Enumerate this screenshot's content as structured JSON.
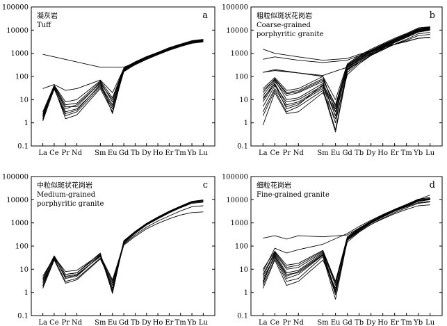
{
  "chart_data": [
    {
      "type": "line",
      "panel": "a",
      "title_lines": [
        "凝灰岩",
        "Tuff"
      ],
      "x_categories": [
        "La",
        "Ce",
        "Pr",
        "Nd",
        "Sm",
        "Eu",
        "Gd",
        "Tb",
        "Dy",
        "Ho",
        "Er",
        "Tm",
        "Yb",
        "Lu"
      ],
      "y_scale": "log",
      "ylim": [
        0.1,
        100000
      ],
      "y_ticks": [
        "0.1",
        "1",
        "10",
        "100",
        "1000",
        "10000",
        "100000"
      ],
      "grid": false,
      "series": [
        {
          "values": [
            900,
            700,
            null,
            null,
            250,
            null,
            250,
            400,
            600,
            900,
            1400,
            2000,
            2800,
            3200
          ]
        },
        {
          "values": [
            30,
            45,
            25,
            30,
            70,
            20,
            220,
            420,
            700,
            1100,
            1700,
            2400,
            3400,
            3900
          ]
        },
        {
          "values": [
            1.5,
            40,
            6,
            7,
            60,
            8,
            200,
            380,
            650,
            1000,
            1600,
            2300,
            3200,
            3600
          ]
        },
        {
          "values": [
            2,
            35,
            3,
            4,
            40,
            5,
            180,
            350,
            600,
            950,
            1500,
            2200,
            3000,
            3500
          ]
        },
        {
          "values": [
            1.2,
            30,
            2,
            3,
            35,
            4,
            160,
            330,
            560,
            900,
            1400,
            2000,
            2800,
            3200
          ]
        },
        {
          "values": [
            2.5,
            38,
            4,
            6,
            50,
            10,
            210,
            400,
            680,
            1050,
            1650,
            2350,
            3300,
            3800
          ]
        },
        {
          "values": [
            1.8,
            33,
            1.5,
            2.2,
            30,
            3,
            170,
            320,
            540,
            870,
            1350,
            1950,
            2700,
            3100
          ]
        },
        {
          "values": [
            3,
            42,
            8,
            10,
            65,
            12,
            230,
            430,
            720,
            1100,
            1750,
            2500,
            3500,
            4000
          ]
        },
        {
          "values": [
            1.4,
            28,
            2.5,
            3.5,
            45,
            6,
            190,
            360,
            610,
            960,
            1500,
            2150,
            3000,
            3400
          ]
        },
        {
          "values": [
            2.2,
            36,
            5,
            5,
            55,
            2.5,
            200,
            390,
            660,
            1020,
            1600,
            2300,
            3200,
            3700
          ]
        }
      ]
    },
    {
      "type": "line",
      "panel": "b",
      "title_lines": [
        "粗粒似斑状花岗岩",
        "Coarse-grained",
        "porphyritic granite"
      ],
      "x_categories": [
        "La",
        "Ce",
        "Pr",
        "Nd",
        "Sm",
        "Eu",
        "Gd",
        "Tb",
        "Dy",
        "Ho",
        "Er",
        "Tm",
        "Yb",
        "Lu"
      ],
      "y_scale": "log",
      "ylim": [
        0.1,
        100000
      ],
      "y_ticks": [
        "0.1",
        "1",
        "10",
        "100",
        "1000",
        "10000",
        "100000"
      ],
      "grid": false,
      "series": [
        {
          "values": [
            1500,
            1000,
            null,
            700,
            500,
            null,
            600,
            900,
            1300,
            1800,
            2500,
            3300,
            4500,
            5000
          ]
        },
        {
          "values": [
            550,
            700,
            null,
            500,
            400,
            null,
            500,
            800,
            1200,
            1700,
            2400,
            3200,
            4400,
            4800
          ]
        },
        {
          "values": [
            150,
            200,
            null,
            null,
            100,
            3,
            200,
            400,
            800,
            1400,
            2500,
            4000,
            7000,
            8000
          ]
        },
        {
          "values": [
            20,
            80,
            20,
            25,
            80,
            5,
            300,
            700,
            1300,
            2300,
            4000,
            6500,
            11000,
            13000
          ]
        },
        {
          "values": [
            10,
            60,
            15,
            20,
            60,
            2,
            250,
            600,
            1200,
            2200,
            3800,
            6200,
            10500,
            12000
          ]
        },
        {
          "values": [
            5,
            40,
            8,
            10,
            40,
            1,
            200,
            500,
            1000,
            1900,
            3400,
            5600,
            9500,
            11000
          ]
        },
        {
          "values": [
            3,
            30,
            5,
            7,
            30,
            0.5,
            180,
            450,
            950,
            1800,
            3200,
            5300,
            9000,
            10500
          ]
        },
        {
          "values": [
            2,
            25,
            3,
            5,
            25,
            0.4,
            150,
            400,
            850,
            1700,
            3000,
            5000,
            8500,
            10000
          ]
        },
        {
          "values": [
            0.8,
            20,
            2.5,
            3,
            20,
            1.5,
            120,
            350,
            800,
            1600,
            2900,
            4800,
            8200,
            9800
          ]
        },
        {
          "values": [
            30,
            90,
            25,
            30,
            100,
            10,
            350,
            800,
            1500,
            2600,
            4500,
            7200,
            12500,
            14000
          ]
        },
        {
          "values": [
            15,
            70,
            10,
            12,
            50,
            4,
            280,
            650,
            1250,
            2250,
            3900,
            6300,
            10800,
            12500
          ]
        },
        {
          "values": [
            8,
            50,
            6,
            8,
            35,
            3,
            220,
            550,
            1100,
            2000,
            3500,
            5800,
            9800,
            11500
          ]
        },
        {
          "values": [
            150,
            180,
            null,
            null,
            110,
            null,
            250,
            500,
            900,
            1500,
            2400,
            3600,
            5800,
            6500
          ]
        },
        {
          "values": [
            12,
            45,
            4,
            6,
            45,
            2,
            260,
            580,
            1150,
            2100,
            3700,
            6000,
            10200,
            12000
          ]
        },
        {
          "values": [
            25,
            75,
            18,
            22,
            70,
            6,
            320,
            720,
            1350,
            2400,
            4100,
            6700,
            11500,
            13500
          ]
        }
      ]
    },
    {
      "type": "line",
      "panel": "c",
      "title_lines": [
        "中粒似斑状花岗岩",
        "Medium-grained",
        "porphyritic granite"
      ],
      "x_categories": [
        "La",
        "Ce",
        "Pr",
        "Nd",
        "Sm",
        "Eu",
        "Gd",
        "Tb",
        "Dy",
        "Ho",
        "Er",
        "Tm",
        "Yb",
        "Lu"
      ],
      "y_scale": "log",
      "ylim": [
        0.1,
        100000
      ],
      "y_ticks": [
        "0.1",
        "1",
        "10",
        "100",
        "1000",
        "10000",
        "100000"
      ],
      "grid": false,
      "series": [
        {
          "values": [
            2,
            35,
            4,
            5,
            40,
            1,
            150,
            400,
            900,
            1700,
            3000,
            5000,
            8000,
            9000
          ]
        },
        {
          "values": [
            3,
            30,
            5,
            6,
            35,
            3,
            140,
            380,
            850,
            1600,
            2800,
            4700,
            7500,
            8500
          ]
        },
        {
          "values": [
            4,
            38,
            6,
            7,
            50,
            0.9,
            160,
            420,
            920,
            1750,
            3100,
            5200,
            8300,
            9500
          ]
        },
        {
          "values": [
            1.8,
            28,
            3,
            4,
            30,
            2.5,
            130,
            350,
            800,
            1500,
            2700,
            4500,
            7000,
            7800
          ]
        },
        {
          "values": [
            5,
            33,
            8,
            9,
            45,
            1.5,
            170,
            430,
            950,
            1800,
            3200,
            5300,
            8500,
            9800
          ]
        },
        {
          "values": [
            2.5,
            32,
            4.5,
            5.5,
            38,
            3.5,
            120,
            300,
            650,
            1200,
            2000,
            3300,
            5000,
            5500
          ]
        },
        {
          "values": [
            3.5,
            36,
            6,
            7,
            42,
            1.2,
            145,
            390,
            870,
            1650,
            2900,
            4800,
            7700,
            8800
          ]
        },
        {
          "values": [
            1.5,
            25,
            2.5,
            3.5,
            28,
            2,
            110,
            260,
            550,
            950,
            1500,
            2200,
            2800,
            3000
          ]
        }
      ]
    },
    {
      "type": "line",
      "panel": "d",
      "title_lines": [
        "细粒花岗岩",
        "Fine-grained granite"
      ],
      "x_categories": [
        "La",
        "Ce",
        "Pr",
        "Nd",
        "Sm",
        "Eu",
        "Gd",
        "Tb",
        "Dy",
        "Ho",
        "Er",
        "Tm",
        "Yb",
        "Lu"
      ],
      "y_scale": "log",
      "ylim": [
        0.1,
        100000
      ],
      "y_ticks": [
        "0.1",
        "1",
        "10",
        "100",
        "1000",
        "10000",
        "100000"
      ],
      "grid": false,
      "series": [
        {
          "values": [
            220,
            280,
            200,
            280,
            250,
            null,
            300,
            600,
            1100,
            1900,
            3200,
            5000,
            7500,
            8500
          ]
        },
        {
          "values": [
            8,
            80,
            50,
            70,
            120,
            null,
            350,
            700,
            1300,
            2300,
            3800,
            6000,
            9500,
            11000
          ]
        },
        {
          "values": [
            3,
            40,
            5,
            8,
            45,
            1,
            200,
            500,
            1000,
            1900,
            3400,
            5500,
            9000,
            10500
          ]
        },
        {
          "values": [
            2,
            30,
            3,
            4,
            35,
            0.5,
            180,
            450,
            950,
            1800,
            3200,
            5200,
            8500,
            10000
          ]
        },
        {
          "values": [
            5,
            50,
            10,
            12,
            55,
            2,
            220,
            550,
            1100,
            2000,
            3600,
            5800,
            9800,
            11500
          ]
        },
        {
          "values": [
            1.5,
            25,
            2,
            3,
            25,
            1.5,
            150,
            400,
            850,
            1600,
            2800,
            4500,
            7000,
            8000
          ]
        },
        {
          "values": [
            10,
            60,
            15,
            18,
            65,
            3,
            250,
            600,
            1200,
            2200,
            3900,
            6300,
            10500,
            12500
          ]
        },
        {
          "values": [
            4,
            35,
            4,
            6,
            40,
            0.8,
            190,
            480,
            980,
            1850,
            3300,
            5400,
            8800,
            10200
          ]
        },
        {
          "values": [
            2.5,
            45,
            7,
            9,
            50,
            1.2,
            210,
            520,
            1050,
            1950,
            3500,
            5700,
            9500,
            11200
          ]
        },
        {
          "values": [
            6,
            55,
            12,
            15,
            60,
            2.5,
            240,
            580,
            1150,
            2100,
            3700,
            6000,
            10000,
            16000
          ]
        },
        {
          "values": [
            3,
            38,
            6,
            7,
            42,
            1,
            180,
            420,
            850,
            1500,
            2500,
            3800,
            5500,
            6000
          ]
        }
      ]
    }
  ]
}
